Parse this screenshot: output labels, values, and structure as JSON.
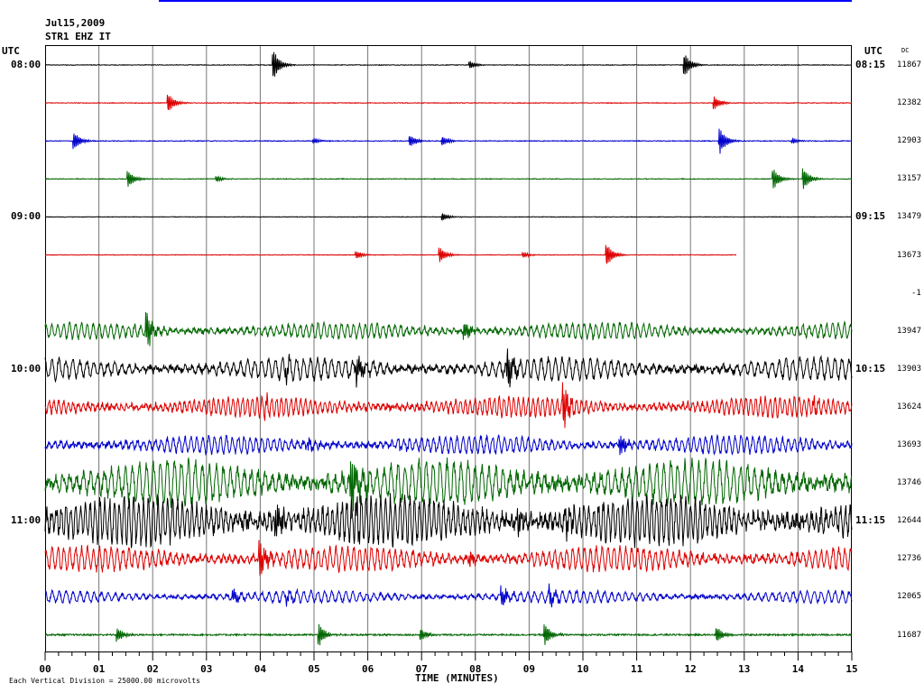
{
  "header": {
    "date": "Jul15,2009",
    "station": "STR1 EHZ IT",
    "utc_left": "UTC",
    "utc_right": "UTC",
    "dc_label": "DC"
  },
  "footer": {
    "division_note": "Each Vertical Division = 25000.00 microvolts",
    "x_axis_label": "TIME (MINUTES)"
  },
  "chart_data": {
    "type": "line",
    "title": "Jul15,2009 STR1 EHZ IT",
    "xlabel": "TIME (MINUTES)",
    "ylabel": "",
    "xlim": [
      0,
      15
    ],
    "x_ticks": [
      "00",
      "01",
      "02",
      "03",
      "04",
      "05",
      "06",
      "07",
      "08",
      "09",
      "10",
      "11",
      "12",
      "13",
      "14",
      "15"
    ],
    "grid": true,
    "rows": [
      {
        "left_time": "08:00",
        "right_time": "08:15",
        "dc": "11867",
        "color": "#000000",
        "amp": 1.2,
        "events": [
          [
            4.25,
            16
          ],
          [
            7.9,
            4
          ],
          [
            11.9,
            12
          ]
        ],
        "end": 15
      },
      {
        "left_time": "",
        "right_time": "",
        "dc": "12382",
        "color": "#dd0000",
        "amp": 1.2,
        "events": [
          [
            2.3,
            10
          ],
          [
            12.45,
            7
          ]
        ],
        "end": 15
      },
      {
        "left_time": "",
        "right_time": "",
        "dc": "12903",
        "color": "#0000cc",
        "amp": 1.3,
        "events": [
          [
            0.55,
            9
          ],
          [
            5.0,
            3
          ],
          [
            6.8,
            6
          ],
          [
            7.4,
            5
          ],
          [
            12.55,
            14
          ],
          [
            13.9,
            3
          ]
        ],
        "end": 15
      },
      {
        "left_time": "",
        "right_time": "",
        "dc": "13157",
        "color": "#006600",
        "amp": 1.3,
        "events": [
          [
            1.55,
            9
          ],
          [
            3.2,
            3
          ],
          [
            13.55,
            11
          ],
          [
            14.1,
            12
          ]
        ],
        "end": 15
      },
      {
        "left_time": "09:00",
        "right_time": "09:15",
        "dc": "13479",
        "color": "#000000",
        "amp": 1.0,
        "events": [
          [
            7.4,
            4
          ]
        ],
        "end": 15
      },
      {
        "left_time": "",
        "right_time": "",
        "dc": "13673",
        "color": "#dd0000",
        "amp": 1.0,
        "events": [
          [
            5.8,
            4
          ],
          [
            7.35,
            8
          ],
          [
            8.9,
            3
          ],
          [
            10.45,
            12
          ]
        ],
        "end": 12.85
      },
      {
        "left_time": "",
        "right_time": "",
        "dc": "-1",
        "color": "#000000",
        "amp": 0,
        "events": [],
        "end": 0
      },
      {
        "left_time": "",
        "right_time": "",
        "dc": "13947",
        "color": "#006600",
        "amp": 8,
        "events": [
          [
            1.9,
            18
          ],
          [
            7.8,
            10
          ]
        ],
        "end": 15
      },
      {
        "left_time": "10:00",
        "right_time": "10:15",
        "dc": "13903",
        "color": "#000000",
        "amp": 11,
        "events": [
          [
            5.8,
            14
          ],
          [
            8.6,
            20
          ],
          [
            4.5,
            8
          ]
        ],
        "end": 15
      },
      {
        "left_time": "",
        "right_time": "",
        "dc": "13624",
        "color": "#dd0000",
        "amp": 10,
        "events": [
          [
            9.65,
            22
          ],
          [
            4.1,
            8
          ],
          [
            14.3,
            6
          ]
        ],
        "end": 15
      },
      {
        "left_time": "",
        "right_time": "",
        "dc": "13693",
        "color": "#0000cc",
        "amp": 9,
        "events": [
          [
            4.9,
            5
          ],
          [
            6.6,
            4
          ],
          [
            10.7,
            10
          ]
        ],
        "end": 15
      },
      {
        "left_time": "",
        "right_time": "",
        "dc": "13746",
        "color": "#006600",
        "amp": 22,
        "events": [
          [
            5.7,
            30
          ]
        ],
        "end": 15
      },
      {
        "left_time": "11:00",
        "right_time": "11:15",
        "dc": "12644",
        "color": "#000000",
        "amp": 24,
        "events": [
          [
            4.3,
            20
          ],
          [
            5.8,
            18
          ],
          [
            8.8,
            10
          ],
          [
            9.7,
            12
          ],
          [
            13.9,
            8
          ]
        ],
        "end": 15
      },
      {
        "left_time": "",
        "right_time": "",
        "dc": "12736",
        "color": "#dd0000",
        "amp": 12,
        "events": [
          [
            4.0,
            20
          ],
          [
            7.9,
            6
          ]
        ],
        "end": 15
      },
      {
        "left_time": "",
        "right_time": "",
        "dc": "12065",
        "color": "#0000cc",
        "amp": 6,
        "events": [
          [
            3.5,
            8
          ],
          [
            4.5,
            6
          ],
          [
            8.5,
            10
          ],
          [
            9.4,
            8
          ]
        ],
        "end": 15
      },
      {
        "left_time": "",
        "right_time": "",
        "dc": "11687",
        "color": "#006600",
        "amp": 3,
        "events": [
          [
            1.35,
            7
          ],
          [
            5.1,
            12
          ],
          [
            7.0,
            6
          ],
          [
            9.3,
            12
          ],
          [
            12.5,
            8
          ]
        ],
        "end": 15
      }
    ]
  }
}
